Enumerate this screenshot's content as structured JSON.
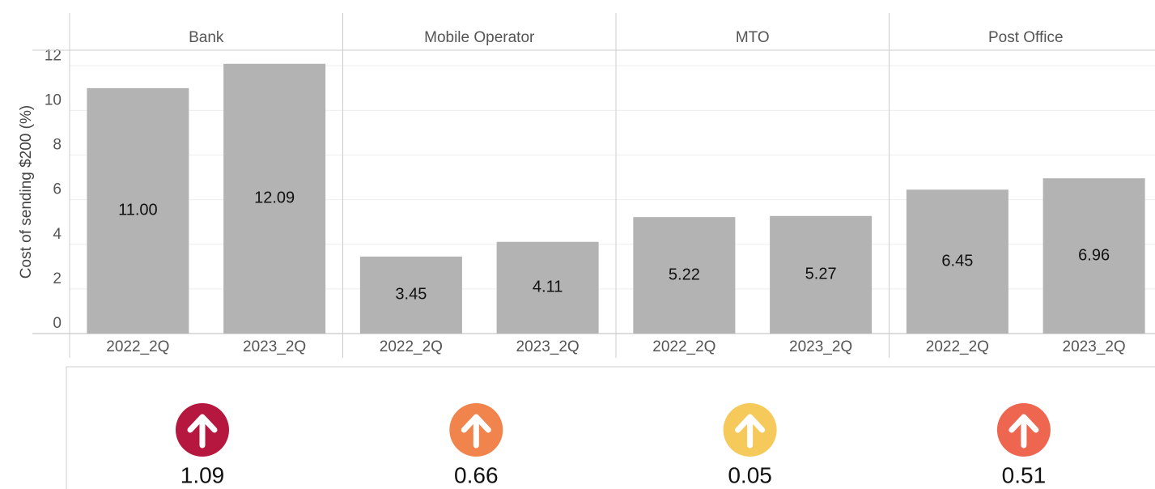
{
  "chart_data": {
    "type": "bar",
    "y_label": "Cost of sending $200 (%)",
    "color": "#b3b3b3",
    "ylim": [
      0,
      12.7
    ],
    "yticks": [
      0,
      2,
      4,
      6,
      8,
      10,
      12
    ],
    "grid": true,
    "panels": [
      {
        "name": "Bank",
        "categories": [
          "2022_2Q",
          "2023_2Q"
        ],
        "values": [
          11,
          12.09
        ],
        "value_labels": [
          "11.00",
          "12.09"
        ]
      },
      {
        "name": "Mobile Operator",
        "categories": [
          "2022_2Q",
          "2023_2Q"
        ],
        "values": [
          3.45,
          4.11
        ],
        "value_labels": [
          "3.45",
          "4.11"
        ]
      },
      {
        "name": "MTO",
        "categories": [
          "2022_2Q",
          "2023_2Q"
        ],
        "values": [
          5.22,
          5.27
        ],
        "value_labels": [
          "5.22",
          "5.27"
        ]
      },
      {
        "name": "Post Office",
        "categories": [
          "2022_2Q",
          "2023_2Q"
        ],
        "values": [
          6.45,
          6.96
        ],
        "value_labels": [
          "6.45",
          "6.96"
        ]
      }
    ],
    "changes": [
      {
        "value": 1.09,
        "color": "#b5173f"
      },
      {
        "value": 0.66,
        "color": "#f0844c"
      },
      {
        "value": 0.05,
        "color": "#f5c95a"
      },
      {
        "value": 0.51,
        "color": "#ef6650"
      }
    ]
  }
}
